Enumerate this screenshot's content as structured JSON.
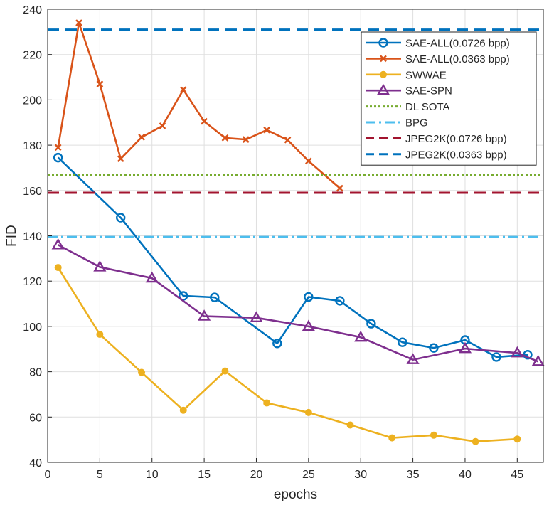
{
  "chart_data": {
    "type": "line",
    "title": "",
    "xlabel": "epochs",
    "ylabel": "FID",
    "xlim": [
      0,
      47.5
    ],
    "ylim": [
      40,
      240
    ],
    "xticks": [
      0,
      5,
      10,
      15,
      20,
      25,
      30,
      35,
      40,
      45
    ],
    "yticks": [
      40,
      60,
      80,
      100,
      120,
      140,
      160,
      180,
      200,
      220,
      240
    ],
    "grid": true,
    "legend_position": "top-right",
    "series": [
      {
        "name": "SAE-ALL(0.0726 bpp)",
        "color": "#0072BD",
        "marker": "circle",
        "line_style": "solid",
        "x": [
          1,
          7,
          13,
          16,
          22,
          25,
          28,
          31,
          34,
          37,
          40,
          43,
          46
        ],
        "y": [
          174.5,
          148,
          113.5,
          112.8,
          92.5,
          113,
          111.3,
          101.2,
          93,
          90.5,
          94,
          86.5,
          87.5
        ]
      },
      {
        "name": "SAE-ALL(0.0363 bpp)",
        "color": "#D95319",
        "marker": "x",
        "line_style": "solid",
        "x": [
          1,
          3,
          5,
          7,
          9,
          11,
          13,
          15,
          17,
          19,
          21,
          23,
          25,
          28
        ],
        "y": [
          179,
          234,
          207,
          174,
          183.5,
          188.5,
          204.5,
          190.5,
          183.2,
          182.5,
          186.7,
          182.3,
          173,
          161
        ]
      },
      {
        "name": "SWWAE",
        "color": "#EDB120",
        "marker": "dot",
        "line_style": "solid",
        "x": [
          1,
          5,
          9,
          13,
          17,
          21,
          25,
          29,
          33,
          37,
          41,
          45
        ],
        "y": [
          126,
          96.5,
          79.7,
          63,
          80.3,
          66.2,
          62,
          56.5,
          50.8,
          52,
          49.2,
          50.3
        ]
      },
      {
        "name": "SAE-SPN",
        "color": "#7E2F8E",
        "marker": "triangle",
        "line_style": "solid",
        "x": [
          1,
          5,
          10,
          15,
          20,
          25,
          30,
          35,
          40,
          45,
          47
        ],
        "y": [
          136,
          126.2,
          121.3,
          104.5,
          103.8,
          100,
          95.2,
          85.3,
          90.2,
          88.3,
          84.5
        ]
      },
      {
        "name": "DL SOTA",
        "color": "#77AC30",
        "marker": "none",
        "line_style": "dotted",
        "x": [
          0,
          47.5
        ],
        "y": [
          167,
          167
        ]
      },
      {
        "name": "BPG",
        "color": "#4DBEEE",
        "marker": "none",
        "line_style": "dashdot",
        "x": [
          0,
          47
        ],
        "y": [
          139.5,
          139.5
        ]
      },
      {
        "name": "JPEG2K(0.0726 bpp)",
        "color": "#A2142F",
        "marker": "none",
        "line_style": "dashed",
        "x": [
          0,
          47.5
        ],
        "y": [
          159,
          159
        ]
      },
      {
        "name": "JPEG2K(0.0363 bpp)",
        "color": "#0072BD",
        "marker": "none",
        "line_style": "dashed",
        "x": [
          0,
          47.5
        ],
        "y": [
          231,
          231
        ]
      }
    ]
  }
}
